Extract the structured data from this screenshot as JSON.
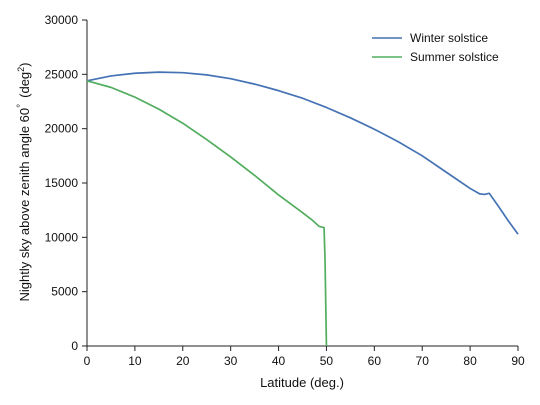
{
  "chart_data": {
    "type": "line",
    "title": "",
    "xlabel": "Latitude (deg.)",
    "ylabel": "Nightly sky above zenith angle 60",
    "ylabel_degree_symbol": "°",
    "ylabel_unit": "(deg",
    "ylabel_unit_sup": "2",
    "ylabel_unit_close": ")",
    "xlim": [
      0,
      90
    ],
    "ylim": [
      0,
      30000
    ],
    "xticks": [
      0,
      10,
      20,
      30,
      40,
      50,
      60,
      70,
      80,
      90
    ],
    "yticks": [
      0,
      5000,
      10000,
      15000,
      20000,
      25000,
      30000
    ],
    "grid": false,
    "legend_position": "top-right",
    "series": [
      {
        "name": "Winter solstice",
        "color": "#4472b4",
        "x": [
          0,
          5,
          10,
          15,
          20,
          25,
          30,
          35,
          40,
          45,
          50,
          55,
          60,
          65,
          70,
          75,
          80,
          82,
          83,
          84,
          86,
          88,
          90
        ],
        "y": [
          24400,
          24850,
          25100,
          25200,
          25150,
          24950,
          24600,
          24100,
          23500,
          22800,
          21950,
          21000,
          19950,
          18800,
          17500,
          16000,
          14500,
          14000,
          13950,
          14050,
          12800,
          11500,
          10300
        ]
      },
      {
        "name": "Summer solstice",
        "color": "#52ad5f",
        "x": [
          0,
          5,
          10,
          15,
          20,
          25,
          30,
          35,
          40,
          44,
          47,
          48.5,
          49.5,
          49.7,
          50
        ],
        "y": [
          24400,
          23800,
          22900,
          21800,
          20500,
          19000,
          17400,
          15700,
          13900,
          12600,
          11600,
          11000,
          10900,
          8000,
          0
        ]
      }
    ]
  }
}
